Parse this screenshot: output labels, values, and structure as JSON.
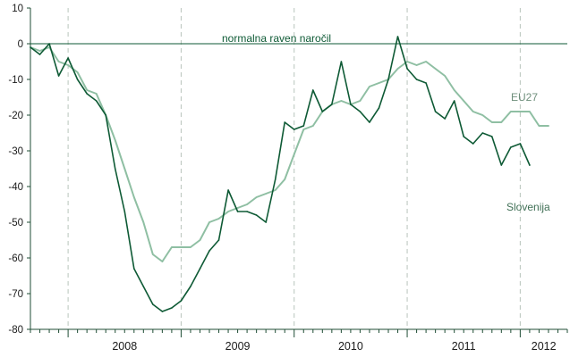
{
  "chart_data": {
    "type": "line",
    "title": "",
    "xlabel": "",
    "ylabel": "",
    "ylim": [
      -80,
      10
    ],
    "yticks": [
      10,
      0,
      -10,
      -20,
      -30,
      -40,
      -50,
      -60,
      -70,
      -80
    ],
    "xlim": [
      "2007-09",
      "2012-06"
    ],
    "year_labels": [
      "2008",
      "2009",
      "2010",
      "2011",
      "2012"
    ],
    "grid": {
      "horizontal": false,
      "vertical": true,
      "vertical_style": "dashed"
    },
    "reference_line": {
      "y": 0,
      "label": "normalna raven naročil"
    },
    "series": [
      {
        "name": "EU27",
        "color": "#8fbfa3",
        "points": [
          [
            "2007-09",
            -1
          ],
          [
            "2007-10",
            -2
          ],
          [
            "2007-11",
            -1
          ],
          [
            "2007-12",
            -5
          ],
          [
            "2008-01",
            -6
          ],
          [
            "2008-02",
            -8
          ],
          [
            "2008-03",
            -13
          ],
          [
            "2008-04",
            -14
          ],
          [
            "2008-05",
            -20
          ],
          [
            "2008-06",
            -27
          ],
          [
            "2008-07",
            -35
          ],
          [
            "2008-08",
            -43
          ],
          [
            "2008-09",
            -50
          ],
          [
            "2008-10",
            -59
          ],
          [
            "2008-11",
            -61
          ],
          [
            "2008-12",
            -57
          ],
          [
            "2009-01",
            -57
          ],
          [
            "2009-02",
            -57
          ],
          [
            "2009-03",
            -55
          ],
          [
            "2009-04",
            -50
          ],
          [
            "2009-05",
            -49
          ],
          [
            "2009-06",
            -47
          ],
          [
            "2009-07",
            -46
          ],
          [
            "2009-08",
            -45
          ],
          [
            "2009-09",
            -43
          ],
          [
            "2009-10",
            -42
          ],
          [
            "2009-11",
            -41
          ],
          [
            "2009-12",
            -38
          ],
          [
            "2010-01",
            -31
          ],
          [
            "2010-02",
            -24
          ],
          [
            "2010-03",
            -23
          ],
          [
            "2010-04",
            -19
          ],
          [
            "2010-05",
            -17
          ],
          [
            "2010-06",
            -16
          ],
          [
            "2010-07",
            -17
          ],
          [
            "2010-08",
            -16
          ],
          [
            "2010-09",
            -12
          ],
          [
            "2010-10",
            -11
          ],
          [
            "2010-11",
            -10
          ],
          [
            "2010-12",
            -7
          ],
          [
            "2011-01",
            -5
          ],
          [
            "2011-02",
            -6
          ],
          [
            "2011-03",
            -5
          ],
          [
            "2011-04",
            -7
          ],
          [
            "2011-05",
            -9
          ],
          [
            "2011-06",
            -13
          ],
          [
            "2011-07",
            -16
          ],
          [
            "2011-08",
            -19
          ],
          [
            "2011-09",
            -20
          ],
          [
            "2011-10",
            -22
          ],
          [
            "2011-11",
            -22
          ],
          [
            "2011-12",
            -19
          ],
          [
            "2012-01",
            -19
          ],
          [
            "2012-02",
            -19
          ],
          [
            "2012-03",
            -23
          ],
          [
            "2012-04",
            -23
          ]
        ]
      },
      {
        "name": "Slovenija",
        "color": "#0e5a35",
        "points": [
          [
            "2007-09",
            -1
          ],
          [
            "2007-10",
            -3
          ],
          [
            "2007-11",
            0
          ],
          [
            "2007-12",
            -9
          ],
          [
            "2008-01",
            -4
          ],
          [
            "2008-02",
            -10
          ],
          [
            "2008-03",
            -14
          ],
          [
            "2008-04",
            -16
          ],
          [
            "2008-05",
            -20
          ],
          [
            "2008-06",
            -35
          ],
          [
            "2008-07",
            -47
          ],
          [
            "2008-08",
            -63
          ],
          [
            "2008-09",
            -68
          ],
          [
            "2008-10",
            -73
          ],
          [
            "2008-11",
            -75
          ],
          [
            "2008-12",
            -74
          ],
          [
            "2009-01",
            -72
          ],
          [
            "2009-02",
            -68
          ],
          [
            "2009-03",
            -63
          ],
          [
            "2009-04",
            -58
          ],
          [
            "2009-05",
            -55
          ],
          [
            "2009-06",
            -41
          ],
          [
            "2009-07",
            -47
          ],
          [
            "2009-08",
            -47
          ],
          [
            "2009-09",
            -48
          ],
          [
            "2009-10",
            -50
          ],
          [
            "2009-11",
            -38
          ],
          [
            "2009-12",
            -22
          ],
          [
            "2010-01",
            -24
          ],
          [
            "2010-02",
            -23
          ],
          [
            "2010-03",
            -13
          ],
          [
            "2010-04",
            -19
          ],
          [
            "2010-05",
            -17
          ],
          [
            "2010-06",
            -5
          ],
          [
            "2010-07",
            -17
          ],
          [
            "2010-08",
            -19
          ],
          [
            "2010-09",
            -22
          ],
          [
            "2010-10",
            -18
          ],
          [
            "2010-11",
            -10
          ],
          [
            "2010-12",
            2
          ],
          [
            "2011-01",
            -7
          ],
          [
            "2011-02",
            -10
          ],
          [
            "2011-03",
            -11
          ],
          [
            "2011-04",
            -19
          ],
          [
            "2011-05",
            -21
          ],
          [
            "2011-06",
            -16
          ],
          [
            "2011-07",
            -26
          ],
          [
            "2011-08",
            -28
          ],
          [
            "2011-09",
            -25
          ],
          [
            "2011-10",
            -26
          ],
          [
            "2011-11",
            -34
          ],
          [
            "2011-12",
            -29
          ],
          [
            "2012-01",
            -28
          ],
          [
            "2012-02",
            -34
          ]
        ]
      }
    ],
    "labels": {
      "eu": "EU27",
      "slo": "Slovenija"
    },
    "colors": {
      "axis": "#1f4d35",
      "grid": "#b8c4bc",
      "reference": "#0e5a35",
      "reference_label": "#0e5a35",
      "eu_label": "#6f8f7c",
      "slo_label": "#3f6f55"
    }
  }
}
